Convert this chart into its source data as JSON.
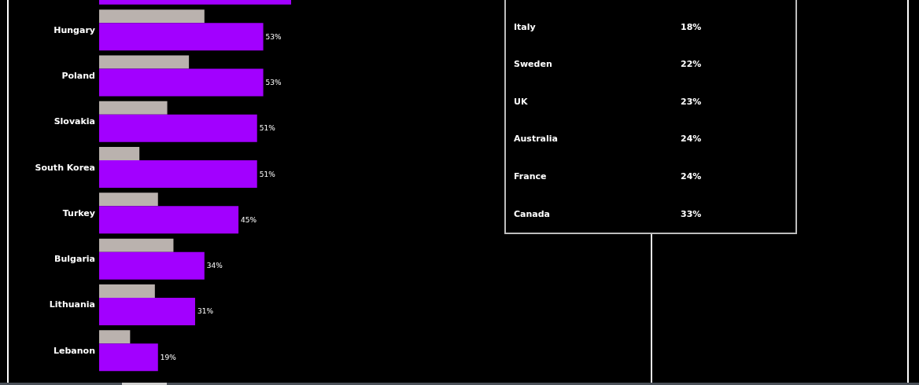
{
  "chart_data": [
    {
      "type": "bar",
      "orientation": "horizontal",
      "tick_labels": "y",
      "categories": [
        null,
        "Hungary",
        "Poland",
        "Slovakia",
        "South Korea",
        "Turkey",
        "Bulgaria",
        "Lithuania",
        "Lebanon"
      ],
      "series": [
        {
          "color": "#bab2ae",
          "values": [
            null,
            34,
            29,
            22,
            13,
            19,
            24,
            18,
            10
          ]
        },
        {
          "color": "#a200ff",
          "values": [
            62,
            53,
            53,
            51,
            51,
            45,
            34,
            31,
            19
          ],
          "value_labels": [
            null,
            "53%",
            "53%",
            "51%",
            "51%",
            "45%",
            "34%",
            "31%",
            "19%"
          ]
        }
      ]
    },
    {
      "type": "other",
      "categories": [
        "Italy",
        "Sweden",
        "UK",
        "Australia",
        "France",
        "Canada"
      ],
      "value_labels": [
        "18%",
        "22%",
        "23%",
        "24%",
        "24%",
        "33%"
      ]
    }
  ]
}
